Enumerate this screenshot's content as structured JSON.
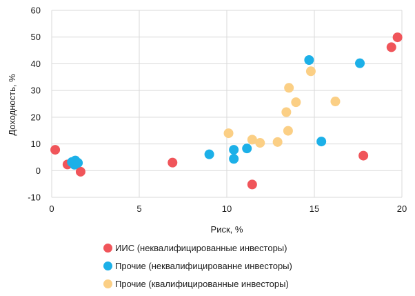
{
  "chart_data": {
    "type": "scatter",
    "title": "",
    "xlabel": "Риск, %",
    "ylabel": "Доходность, %",
    "xlim": [
      0,
      20
    ],
    "ylim": [
      -10,
      60
    ],
    "xticks": [
      "0",
      "5",
      "10",
      "15",
      "20"
    ],
    "yticks": [
      "-10",
      "0",
      "10",
      "20",
      "30",
      "40",
      "50",
      "60"
    ],
    "grid": true,
    "legend_position": "bottom",
    "series": [
      {
        "name": "ИИС (неквалифицированные инвесторы)",
        "color": "#f0555a",
        "points": [
          [
            0.2,
            7.8
          ],
          [
            0.9,
            2.3
          ],
          [
            1.65,
            -0.4
          ],
          [
            6.9,
            3.0
          ],
          [
            11.45,
            -5.2
          ],
          [
            17.8,
            5.6
          ],
          [
            19.4,
            46.2
          ],
          [
            19.75,
            49.9
          ]
        ]
      },
      {
        "name": "Прочие (неквалифицированне инвесторы)",
        "color": "#1cb0e8",
        "points": [
          [
            1.15,
            3.2
          ],
          [
            1.3,
            2.2
          ],
          [
            1.35,
            3.8
          ],
          [
            1.5,
            2.9
          ],
          [
            9.0,
            6.1
          ],
          [
            10.4,
            7.8
          ],
          [
            10.4,
            4.4
          ],
          [
            11.15,
            8.3
          ],
          [
            14.7,
            41.4
          ],
          [
            15.4,
            10.9
          ],
          [
            17.6,
            40.2
          ]
        ]
      },
      {
        "name": "Прочие (квалифицированные инвесторы)",
        "color": "#fbcf85",
        "points": [
          [
            10.1,
            14.0
          ],
          [
            11.45,
            11.6
          ],
          [
            11.9,
            10.4
          ],
          [
            12.9,
            10.7
          ],
          [
            13.4,
            21.9
          ],
          [
            13.5,
            14.9
          ],
          [
            13.55,
            31.0
          ],
          [
            13.95,
            25.6
          ],
          [
            14.8,
            37.2
          ],
          [
            16.2,
            25.9
          ]
        ]
      }
    ]
  }
}
